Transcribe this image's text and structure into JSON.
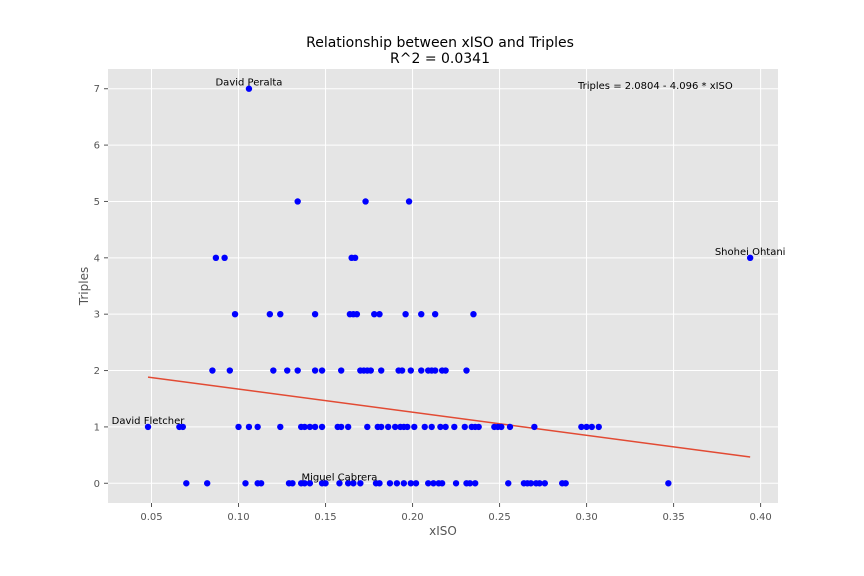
{
  "chart_data": {
    "type": "scatter",
    "title": "Relationship between xISO and Triples",
    "subtitle": "R^2 = 0.0341",
    "xlabel": "xISO",
    "ylabel": "Triples",
    "xlim": [
      0.025,
      0.41
    ],
    "ylim": [
      -0.35,
      7.35
    ],
    "xticks": [
      "0.05",
      "0.10",
      "0.15",
      "0.20",
      "0.25",
      "0.30",
      "0.35",
      "0.40"
    ],
    "yticks": [
      "0",
      "1",
      "2",
      "3",
      "4",
      "5",
      "6",
      "7"
    ],
    "grid": true,
    "equation": "Triples = 2.0804 - 4.096 * xISO",
    "regression": {
      "intercept": 2.0804,
      "slope": -4.096,
      "x_range": [
        0.048,
        0.394
      ],
      "color": "#e24a33"
    },
    "point_color": "#0000ff",
    "background": "#e5e5e5",
    "points": [
      [
        0.106,
        7
      ],
      [
        0.134,
        5
      ],
      [
        0.173,
        5
      ],
      [
        0.198,
        5
      ],
      [
        0.087,
        4
      ],
      [
        0.092,
        4
      ],
      [
        0.165,
        4
      ],
      [
        0.167,
        4
      ],
      [
        0.394,
        4
      ],
      [
        0.098,
        3
      ],
      [
        0.118,
        3
      ],
      [
        0.124,
        3
      ],
      [
        0.144,
        3
      ],
      [
        0.164,
        3
      ],
      [
        0.166,
        3
      ],
      [
        0.168,
        3
      ],
      [
        0.178,
        3
      ],
      [
        0.181,
        3
      ],
      [
        0.196,
        3
      ],
      [
        0.205,
        3
      ],
      [
        0.213,
        3
      ],
      [
        0.235,
        3
      ],
      [
        0.085,
        2
      ],
      [
        0.095,
        2
      ],
      [
        0.12,
        2
      ],
      [
        0.128,
        2
      ],
      [
        0.134,
        2
      ],
      [
        0.144,
        2
      ],
      [
        0.148,
        2
      ],
      [
        0.159,
        2
      ],
      [
        0.17,
        2
      ],
      [
        0.172,
        2
      ],
      [
        0.174,
        2
      ],
      [
        0.176,
        2
      ],
      [
        0.182,
        2
      ],
      [
        0.192,
        2
      ],
      [
        0.194,
        2
      ],
      [
        0.199,
        2
      ],
      [
        0.205,
        2
      ],
      [
        0.209,
        2
      ],
      [
        0.211,
        2
      ],
      [
        0.213,
        2
      ],
      [
        0.217,
        2
      ],
      [
        0.219,
        2
      ],
      [
        0.231,
        2
      ],
      [
        0.048,
        1
      ],
      [
        0.066,
        1
      ],
      [
        0.068,
        1
      ],
      [
        0.1,
        1
      ],
      [
        0.106,
        1
      ],
      [
        0.111,
        1
      ],
      [
        0.124,
        1
      ],
      [
        0.136,
        1
      ],
      [
        0.138,
        1
      ],
      [
        0.141,
        1
      ],
      [
        0.144,
        1
      ],
      [
        0.148,
        1
      ],
      [
        0.157,
        1
      ],
      [
        0.159,
        1
      ],
      [
        0.163,
        1
      ],
      [
        0.174,
        1
      ],
      [
        0.18,
        1
      ],
      [
        0.182,
        1
      ],
      [
        0.186,
        1
      ],
      [
        0.19,
        1
      ],
      [
        0.193,
        1
      ],
      [
        0.195,
        1
      ],
      [
        0.197,
        1
      ],
      [
        0.201,
        1
      ],
      [
        0.207,
        1
      ],
      [
        0.211,
        1
      ],
      [
        0.216,
        1
      ],
      [
        0.219,
        1
      ],
      [
        0.224,
        1
      ],
      [
        0.23,
        1
      ],
      [
        0.234,
        1
      ],
      [
        0.236,
        1
      ],
      [
        0.238,
        1
      ],
      [
        0.247,
        1
      ],
      [
        0.249,
        1
      ],
      [
        0.251,
        1
      ],
      [
        0.256,
        1
      ],
      [
        0.27,
        1
      ],
      [
        0.297,
        1
      ],
      [
        0.3,
        1
      ],
      [
        0.303,
        1
      ],
      [
        0.307,
        1
      ],
      [
        0.07,
        0
      ],
      [
        0.082,
        0
      ],
      [
        0.104,
        0
      ],
      [
        0.111,
        0
      ],
      [
        0.113,
        0
      ],
      [
        0.129,
        0
      ],
      [
        0.131,
        0
      ],
      [
        0.136,
        0
      ],
      [
        0.138,
        0
      ],
      [
        0.141,
        0
      ],
      [
        0.148,
        0
      ],
      [
        0.15,
        0
      ],
      [
        0.158,
        0
      ],
      [
        0.163,
        0
      ],
      [
        0.166,
        0
      ],
      [
        0.17,
        0
      ],
      [
        0.179,
        0
      ],
      [
        0.181,
        0
      ],
      [
        0.187,
        0
      ],
      [
        0.191,
        0
      ],
      [
        0.195,
        0
      ],
      [
        0.199,
        0
      ],
      [
        0.202,
        0
      ],
      [
        0.209,
        0
      ],
      [
        0.212,
        0
      ],
      [
        0.215,
        0
      ],
      [
        0.217,
        0
      ],
      [
        0.225,
        0
      ],
      [
        0.231,
        0
      ],
      [
        0.233,
        0
      ],
      [
        0.236,
        0
      ],
      [
        0.255,
        0
      ],
      [
        0.264,
        0
      ],
      [
        0.266,
        0
      ],
      [
        0.268,
        0
      ],
      [
        0.271,
        0
      ],
      [
        0.273,
        0
      ],
      [
        0.276,
        0
      ],
      [
        0.286,
        0
      ],
      [
        0.288,
        0
      ],
      [
        0.347,
        0
      ]
    ],
    "annotations": [
      {
        "label": "David Peralta",
        "x": 0.106,
        "y": 7
      },
      {
        "label": "Shohei Ohtani",
        "x": 0.394,
        "y": 4
      },
      {
        "label": "David Fletcher",
        "x": 0.048,
        "y": 1
      },
      {
        "label": "Miguel Cabrera",
        "x": 0.158,
        "y": 0
      }
    ]
  }
}
